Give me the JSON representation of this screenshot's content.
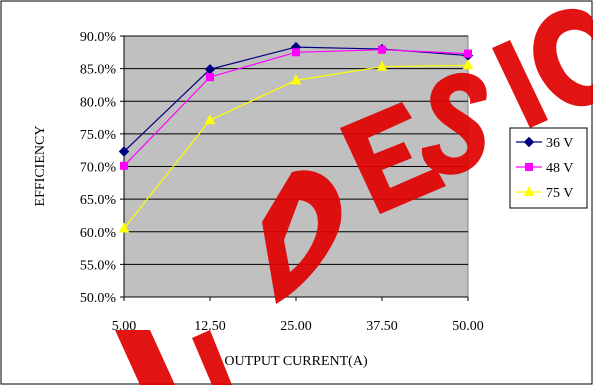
{
  "chart_data": {
    "type": "line",
    "title": "",
    "xlabel": "OUTPUT CURRENT(A)",
    "ylabel": "EFFICIENCY",
    "categories": [
      "5.00",
      "12.50",
      "25.00",
      "37.50",
      "50.00"
    ],
    "ylim": [
      50,
      90
    ],
    "yticks": [
      "50.0%",
      "55.0%",
      "60.0%",
      "65.0%",
      "70.0%",
      "75.0%",
      "80.0%",
      "85.0%",
      "90.0%"
    ],
    "grid": "horizontal",
    "legend_position": "right",
    "series": [
      {
        "name": "36 V",
        "values": [
          72.3,
          84.9,
          88.3,
          88.0,
          87.0
        ],
        "color": "#000080",
        "marker": "diamond"
      },
      {
        "name": "48 V",
        "values": [
          70.1,
          83.7,
          87.5,
          87.9,
          87.3
        ],
        "color": "#ff00ff",
        "marker": "square"
      },
      {
        "name": "75 V",
        "values": [
          60.5,
          77.1,
          83.2,
          85.3,
          85.5
        ],
        "color": "#ffff00",
        "marker": "triangle"
      }
    ],
    "colors": {
      "plot_background": "#c0c0c0",
      "watermark": "#e00000"
    }
  }
}
